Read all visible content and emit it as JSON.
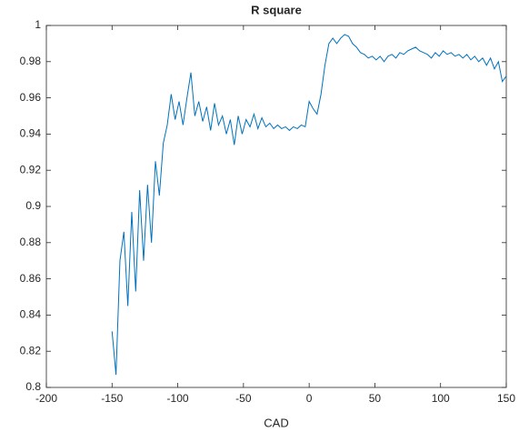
{
  "chart_data": {
    "type": "line",
    "title": "R square",
    "x_label": "CAD",
    "x": [
      -150,
      -147,
      -144,
      -141,
      -138,
      -135,
      -132,
      -129,
      -126,
      -123,
      -120,
      -117,
      -114,
      -111,
      -108,
      -105,
      -102,
      -99,
      -96,
      -93,
      -90,
      -87,
      -84,
      -81,
      -78,
      -75,
      -72,
      -69,
      -66,
      -63,
      -60,
      -57,
      -54,
      -51,
      -48,
      -45,
      -42,
      -39,
      -36,
      -33,
      -30,
      -27,
      -24,
      -21,
      -18,
      -15,
      -12,
      -9,
      -6,
      -3,
      0,
      3,
      6,
      9,
      12,
      15,
      18,
      21,
      24,
      27,
      30,
      33,
      36,
      39,
      42,
      45,
      48,
      51,
      54,
      57,
      60,
      63,
      66,
      69,
      72,
      75,
      78,
      81,
      84,
      87,
      90,
      93,
      96,
      99,
      102,
      105,
      108,
      111,
      114,
      117,
      120,
      123,
      126,
      129,
      132,
      135,
      138,
      141,
      144,
      147,
      150
    ],
    "series": [
      {
        "color": "#0072bd",
        "values": [
          0.831,
          0.807,
          0.87,
          0.886,
          0.845,
          0.897,
          0.853,
          0.909,
          0.87,
          0.912,
          0.88,
          0.925,
          0.906,
          0.935,
          0.945,
          0.962,
          0.948,
          0.958,
          0.945,
          0.96,
          0.974,
          0.95,
          0.958,
          0.947,
          0.955,
          0.942,
          0.957,
          0.945,
          0.95,
          0.94,
          0.948,
          0.934,
          0.95,
          0.94,
          0.948,
          0.944,
          0.951,
          0.943,
          0.949,
          0.944,
          0.946,
          0.943,
          0.945,
          0.943,
          0.944,
          0.942,
          0.944,
          0.943,
          0.945,
          0.944,
          0.958,
          0.954,
          0.951,
          0.962,
          0.978,
          0.99,
          0.993,
          0.99,
          0.993,
          0.995,
          0.994,
          0.99,
          0.988,
          0.985,
          0.984,
          0.982,
          0.983,
          0.981,
          0.983,
          0.98,
          0.983,
          0.984,
          0.982,
          0.985,
          0.984,
          0.986,
          0.987,
          0.988,
          0.986,
          0.985,
          0.984,
          0.982,
          0.985,
          0.983,
          0.986,
          0.984,
          0.985,
          0.983,
          0.984,
          0.982,
          0.984,
          0.981,
          0.983,
          0.98,
          0.982,
          0.978,
          0.982,
          0.976,
          0.98,
          0.969,
          0.972
        ]
      }
    ],
    "xlim": [
      -200,
      150
    ],
    "xticks": [
      -200,
      -150,
      -100,
      -50,
      0,
      50,
      100,
      150
    ],
    "ylim": [
      0.8,
      1
    ],
    "yticks": [
      0.8,
      0.82,
      0.84,
      0.86,
      0.88,
      0.9,
      0.92,
      0.94,
      0.96,
      0.98,
      1
    ]
  }
}
